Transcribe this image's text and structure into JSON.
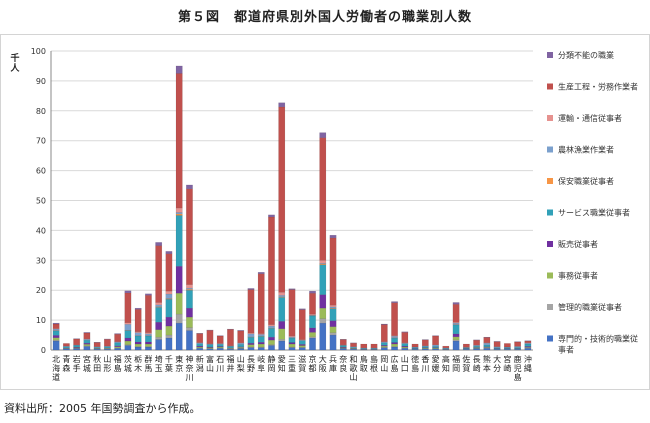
{
  "title": "第５図　都道府県別外国人労働者の職業別人数",
  "source": "資料出所：2005 年国勢調査から作成。",
  "colors": {
    "専門的・技術的職業従事者": "#4472c4",
    "管理的職業従事者": "#a5a5a5",
    "事務従事者": "#9bbb59",
    "販売従事者": "#7030a0",
    "サービス職業従事者": "#31a1b8",
    "保安職業従事者": "#f79646",
    "農林漁業作業者": "#7ba0cd",
    "運輸・通信従事者": "#e6928f",
    "生産工程・労務作業者": "#c0504d",
    "分類不能の職業": "#8064a2"
  },
  "chart_data": {
    "type": "bar",
    "stacked": true,
    "ylabel": "千人",
    "ylim": [
      0,
      100
    ],
    "yticks": [
      0,
      10,
      20,
      30,
      40,
      50,
      60,
      70,
      80,
      90,
      100
    ],
    "grid": true,
    "legend_position": "right",
    "categories": [
      "北海道",
      "青森",
      "岩手",
      "宮城",
      "秋田",
      "山形",
      "福島",
      "茨城",
      "栃木",
      "群馬",
      "埼玉",
      "千葉",
      "東京",
      "神奈川",
      "新潟",
      "富山",
      "石川",
      "福井",
      "山梨",
      "長野",
      "岐阜",
      "静岡",
      "愛知",
      "三重",
      "滋賀",
      "京都",
      "大阪",
      "兵庫",
      "奈良",
      "和歌山",
      "鳥取",
      "島根",
      "岡山",
      "広島",
      "山口",
      "徳島",
      "香川",
      "愛媛",
      "高知",
      "福岡",
      "佐賀",
      "長崎",
      "熊本",
      "大分",
      "宮崎",
      "鹿児島",
      "沖縄"
    ],
    "series": [
      {
        "name": "専門的・技術的職業従事者",
        "values": [
          3.0,
          0.4,
          0.5,
          1.2,
          0.3,
          0.3,
          0.6,
          1.5,
          1.0,
          1.0,
          3.5,
          4.0,
          9.0,
          6.5,
          0.6,
          0.4,
          0.6,
          0.3,
          0.5,
          0.8,
          0.8,
          1.5,
          3.0,
          0.8,
          0.8,
          4.0,
          9.0,
          5.0,
          0.5,
          0.3,
          0.2,
          0.2,
          0.8,
          1.0,
          0.6,
          0.3,
          0.4,
          0.4,
          0.2,
          3.0,
          0.3,
          0.5,
          0.6,
          0.3,
          0.3,
          0.3,
          0.6
        ]
      },
      {
        "name": "管理的職業従事者",
        "values": [
          0.3,
          0.1,
          0.1,
          0.2,
          0.1,
          0.1,
          0.1,
          0.3,
          0.2,
          0.2,
          0.8,
          1.0,
          3.0,
          1.0,
          0.1,
          0.1,
          0.1,
          0.1,
          0.1,
          0.2,
          0.2,
          0.3,
          0.6,
          0.2,
          0.1,
          0.4,
          1.5,
          0.8,
          0.1,
          0.1,
          0.0,
          0.0,
          0.1,
          0.2,
          0.1,
          0.0,
          0.1,
          0.1,
          0.0,
          0.4,
          0.0,
          0.1,
          0.1,
          0.0,
          0.0,
          0.0,
          0.1
        ]
      },
      {
        "name": "事務従事者",
        "values": [
          0.8,
          0.1,
          0.2,
          0.5,
          0.1,
          0.2,
          0.4,
          1.2,
          0.8,
          0.8,
          2.5,
          3.0,
          7.0,
          3.5,
          0.3,
          0.3,
          0.3,
          0.2,
          0.3,
          0.8,
          1.0,
          1.5,
          3.5,
          1.0,
          0.6,
          1.5,
          3.5,
          2.0,
          0.2,
          0.1,
          0.1,
          0.1,
          0.4,
          0.8,
          0.3,
          0.1,
          0.2,
          0.2,
          0.1,
          1.0,
          0.1,
          0.2,
          0.2,
          0.1,
          0.1,
          0.1,
          0.2
        ]
      },
      {
        "name": "販売従事者",
        "values": [
          0.8,
          0.1,
          0.2,
          0.4,
          0.1,
          0.1,
          0.3,
          1.0,
          0.7,
          0.7,
          2.5,
          3.0,
          9.0,
          3.0,
          0.3,
          0.2,
          0.2,
          0.1,
          0.2,
          0.5,
          0.6,
          1.0,
          2.5,
          0.5,
          0.4,
          1.5,
          4.5,
          2.0,
          0.2,
          0.1,
          0.1,
          0.1,
          0.3,
          0.5,
          0.3,
          0.1,
          0.1,
          0.1,
          0.1,
          1.0,
          0.1,
          0.1,
          0.2,
          0.1,
          0.1,
          0.1,
          0.3
        ]
      },
      {
        "name": "サービス職業従事者",
        "values": [
          1.5,
          0.4,
          0.5,
          1.0,
          0.3,
          0.4,
          1.0,
          2.5,
          2.0,
          2.0,
          5.0,
          6.0,
          17.0,
          6.0,
          0.8,
          0.8,
          0.7,
          0.5,
          0.8,
          2.0,
          2.0,
          3.0,
          8.0,
          1.5,
          1.2,
          4.0,
          10.0,
          4.0,
          0.5,
          0.3,
          0.2,
          0.2,
          0.8,
          1.5,
          0.8,
          0.3,
          0.4,
          0.4,
          0.2,
          3.0,
          0.3,
          0.4,
          0.6,
          0.3,
          0.3,
          0.4,
          0.8
        ]
      },
      {
        "name": "保安職業従事者",
        "values": [
          0.1,
          0.0,
          0.0,
          0.0,
          0.0,
          0.0,
          0.0,
          0.1,
          0.1,
          0.1,
          0.2,
          0.2,
          0.5,
          0.3,
          0.0,
          0.0,
          0.0,
          0.0,
          0.0,
          0.1,
          0.1,
          0.1,
          0.2,
          0.1,
          0.0,
          0.1,
          0.3,
          0.2,
          0.0,
          0.0,
          0.0,
          0.0,
          0.0,
          0.1,
          0.0,
          0.0,
          0.0,
          0.0,
          0.0,
          0.1,
          0.0,
          0.0,
          0.0,
          0.0,
          0.0,
          0.0,
          0.0
        ]
      },
      {
        "name": "農林漁業作業者",
        "values": [
          0.5,
          0.2,
          0.2,
          0.3,
          0.2,
          0.2,
          0.3,
          2.0,
          1.0,
          0.6,
          0.6,
          1.5,
          0.5,
          0.4,
          0.3,
          0.2,
          0.2,
          0.1,
          0.4,
          1.0,
          0.5,
          0.6,
          0.5,
          0.3,
          0.2,
          0.2,
          0.2,
          0.4,
          0.1,
          0.2,
          0.1,
          0.1,
          0.3,
          0.5,
          0.2,
          0.2,
          0.2,
          0.5,
          0.1,
          0.5,
          0.1,
          0.3,
          0.6,
          0.3,
          0.2,
          0.3,
          0.3
        ]
      },
      {
        "name": "運輸・通信従事者",
        "values": [
          0.2,
          0.0,
          0.0,
          0.1,
          0.0,
          0.0,
          0.1,
          0.5,
          0.3,
          0.4,
          0.8,
          1.0,
          1.5,
          1.2,
          0.1,
          0.1,
          0.1,
          0.1,
          0.1,
          0.3,
          0.3,
          0.5,
          1.0,
          0.3,
          0.2,
          0.3,
          1.0,
          0.6,
          0.1,
          0.0,
          0.0,
          0.0,
          0.1,
          0.2,
          0.1,
          0.0,
          0.0,
          0.0,
          0.0,
          0.3,
          0.0,
          0.0,
          0.1,
          0.0,
          0.0,
          0.0,
          0.1
        ]
      },
      {
        "name": "生産工程・労務作業者",
        "values": [
          1.5,
          0.9,
          2.0,
          2.0,
          1.4,
          2.3,
          2.5,
          10.0,
          7.5,
          12.5,
          19.0,
          12.5,
          45.0,
          32.0,
          3.0,
          4.5,
          2.5,
          5.5,
          4.0,
          14.5,
          20.0,
          36.0,
          62.0,
          15.5,
          10.0,
          7.0,
          41.0,
          22.5,
          1.8,
          1.2,
          1.3,
          1.3,
          5.7,
          11.0,
          3.5,
          1.0,
          2.0,
          3.0,
          0.6,
          6.0,
          1.1,
          1.7,
          1.8,
          1.7,
          1.2,
          1.5,
          0.6
        ]
      },
      {
        "name": "分類不能の職業",
        "values": [
          0.3,
          0.0,
          0.1,
          0.2,
          0.1,
          0.1,
          0.2,
          0.7,
          0.4,
          0.5,
          1.1,
          0.8,
          2.5,
          1.3,
          0.1,
          0.1,
          0.1,
          0.1,
          0.2,
          0.4,
          0.5,
          0.7,
          1.4,
          0.3,
          0.3,
          0.7,
          1.7,
          0.9,
          0.1,
          0.1,
          0.0,
          0.0,
          0.2,
          0.4,
          0.2,
          0.0,
          0.1,
          0.1,
          0.0,
          0.6,
          0.0,
          0.1,
          0.1,
          0.1,
          0.0,
          0.1,
          0.1
        ]
      }
    ]
  }
}
